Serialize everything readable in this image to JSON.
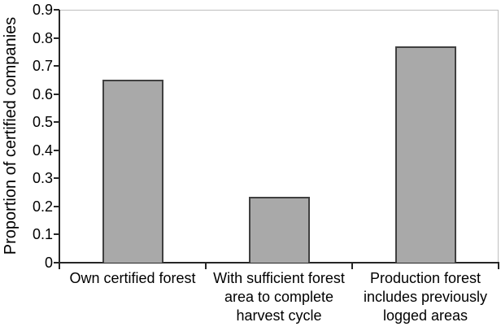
{
  "chart_data": {
    "type": "bar",
    "title": "",
    "xlabel": "",
    "ylabel": "Proportion of certified companies",
    "categories": [
      "Own certified forest",
      "With sufficient forest\narea to complete\nharvest cycle",
      "Production forest\nincludes previously\nlogged areas"
    ],
    "values": [
      0.65,
      0.235,
      0.77
    ],
    "ylim": [
      0,
      0.9
    ],
    "ytick_step": 0.1,
    "ytick_labels": [
      "0",
      "0.1",
      "0.2",
      "0.3",
      "0.4",
      "0.5",
      "0.6",
      "0.7",
      "0.8",
      "0.9"
    ],
    "grid": false,
    "legend": "none",
    "bar_fill": "#a9a9a9",
    "bar_border": "#404040",
    "axis_color": "#262626",
    "plot_border_color": "#bfbfbf",
    "text_color": "#000000",
    "background": "#ffffff"
  }
}
